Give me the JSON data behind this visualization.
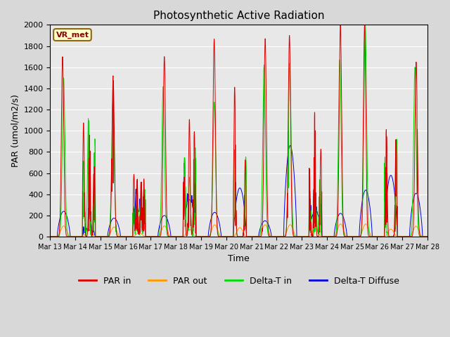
{
  "title": "Photosynthetic Active Radiation",
  "xlabel": "Time",
  "ylabel": "PAR (umol/m2/s)",
  "label_text": "VR_met",
  "ylim": [
    0,
    2000
  ],
  "legend": [
    "PAR in",
    "PAR out",
    "Delta-T in",
    "Delta-T Diffuse"
  ],
  "legend_colors": [
    "#dd0000",
    "#ff9900",
    "#00dd00",
    "#0000dd"
  ],
  "background_color": "#e8e8e8",
  "days": 15,
  "start_day": 13,
  "figsize": [
    6.4,
    4.8
  ],
  "dpi": 100
}
